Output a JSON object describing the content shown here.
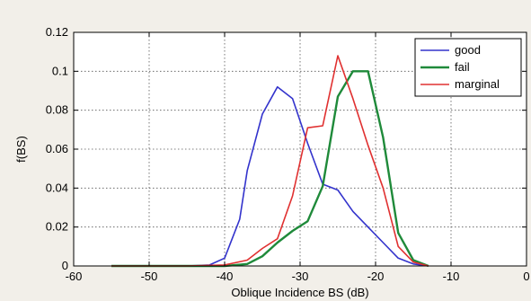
{
  "chart_data": {
    "type": "line",
    "title": "",
    "xlabel": "Oblique Incidence BS (dB)",
    "ylabel": "f(BS)",
    "xlim": [
      -60,
      0
    ],
    "ylim": [
      0,
      0.12
    ],
    "xticks": [
      -60,
      -50,
      -40,
      -30,
      -20,
      -10,
      0
    ],
    "yticks": [
      0,
      0.02,
      0.04,
      0.06,
      0.08,
      0.1,
      0.12
    ],
    "xtick_labels": [
      "-60",
      "-50",
      "-40",
      "-30",
      "-20",
      "-10",
      "0"
    ],
    "ytick_labels": [
      "0",
      "0.02",
      "0.04",
      "0.06",
      "0.08",
      "0.1",
      "0.12"
    ],
    "grid": true,
    "grid_style": "dotted",
    "legend_position": "top-right",
    "series": [
      {
        "name": "good",
        "color": "#3333cc",
        "x": [
          -55,
          -50,
          -45,
          -42,
          -40,
          -38,
          -37,
          -35,
          -33,
          -31,
          -29,
          -27,
          -25,
          -23,
          -21,
          -19,
          -17,
          -15,
          -13
        ],
        "y": [
          0,
          0,
          0,
          0.0005,
          0.004,
          0.024,
          0.049,
          0.078,
          0.092,
          0.086,
          0.063,
          0.042,
          0.039,
          0.028,
          0.02,
          0.012,
          0.004,
          0.001,
          0
        ]
      },
      {
        "name": "fail",
        "color": "#1f8a3a",
        "x": [
          -55,
          -50,
          -45,
          -40,
          -37,
          -35,
          -33,
          -31,
          -29,
          -27,
          -25,
          -23,
          -21,
          -19,
          -17,
          -15,
          -13
        ],
        "y": [
          0,
          0,
          0,
          0,
          0.001,
          0.005,
          0.012,
          0.018,
          0.023,
          0.041,
          0.087,
          0.1,
          0.1,
          0.066,
          0.017,
          0.003,
          0
        ]
      },
      {
        "name": "marginal",
        "color": "#e03030",
        "x": [
          -55,
          -50,
          -45,
          -40,
          -37,
          -35,
          -33,
          -31,
          -29,
          -27,
          -25,
          -23,
          -21,
          -19,
          -17,
          -15,
          -13
        ],
        "y": [
          0,
          0,
          0,
          0.0005,
          0.003,
          0.009,
          0.014,
          0.036,
          0.071,
          0.072,
          0.108,
          0.086,
          0.062,
          0.04,
          0.01,
          0.002,
          0
        ]
      }
    ]
  }
}
